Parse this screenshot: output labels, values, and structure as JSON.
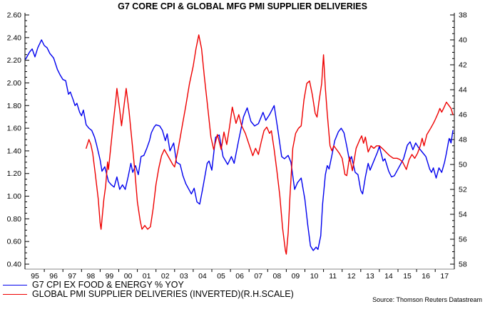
{
  "title": "G7 CORE CPI & GLOBAL MFG PMI SUPPLIER DELIVERIES",
  "source": "Source: Thomson Reuters Datastream",
  "colors": {
    "cpi_blue": "#0000ee",
    "pmi_red": "#ee0000",
    "axis": "#000000",
    "baseline": "#888888",
    "background": "#ffffff"
  },
  "legend": [
    {
      "label": "G7 CPI EX FOOD & ENERGY % YOY",
      "color": "#0000ee"
    },
    {
      "label": "GLOBAL PMI SUPPLIER DELIVERIES (INVERTED)(R.H.SCALE)",
      "color": "#ee0000"
    }
  ],
  "chart_data": {
    "type": "line",
    "title": "G7 CORE CPI & GLOBAL MFG PMI SUPPLIER DELIVERIES",
    "grid": false,
    "legend_position": "bottom-left",
    "x_axis": {
      "range": [
        1995,
        2018.2
      ],
      "tick_labels": [
        "95",
        "96",
        "97",
        "98",
        "99",
        "00",
        "01",
        "02",
        "03",
        "04",
        "05",
        "06",
        "07",
        "08",
        "09",
        "10",
        "11",
        "12",
        "13",
        "14",
        "15",
        "16",
        "17"
      ]
    },
    "left_axis": {
      "series": "G7 CPI EX FOOD & ENERGY % YOY",
      "range": [
        0.4,
        2.6
      ],
      "tick_step": 0.2,
      "minor_step": 0.05,
      "tick_labels": [
        "2.60",
        "2.40",
        "2.20",
        "2.00",
        "1.80",
        "1.60",
        "1.40",
        "1.20",
        "1.00",
        "0.80",
        "0.60",
        "0.40"
      ]
    },
    "right_axis": {
      "series": "GLOBAL PMI SUPPLIER DELIVERIES (INVERTED)",
      "range": [
        38,
        58
      ],
      "inverted_scale": true,
      "tick_step": 2,
      "minor_step": 0.5,
      "tick_labels": [
        "38",
        "40",
        "42",
        "44",
        "46",
        "48",
        "50",
        "52",
        "54",
        "56",
        "58"
      ]
    },
    "series": [
      {
        "name": "G7 CPI EX FOOD & ENERGY % YOY",
        "axis": "left",
        "color": "#0000ee",
        "points": [
          [
            1995.0,
            2.21
          ],
          [
            1995.2,
            2.27
          ],
          [
            1995.35,
            2.3
          ],
          [
            1995.5,
            2.23
          ],
          [
            1995.65,
            2.31
          ],
          [
            1995.85,
            2.38
          ],
          [
            1996.0,
            2.33
          ],
          [
            1996.15,
            2.31
          ],
          [
            1996.3,
            2.26
          ],
          [
            1996.5,
            2.22
          ],
          [
            1996.7,
            2.12
          ],
          [
            1996.85,
            2.07
          ],
          [
            1997.0,
            2.03
          ],
          [
            1997.15,
            2.02
          ],
          [
            1997.3,
            1.9
          ],
          [
            1997.4,
            1.92
          ],
          [
            1997.55,
            1.85
          ],
          [
            1997.65,
            1.8
          ],
          [
            1997.75,
            1.82
          ],
          [
            1997.9,
            1.74
          ],
          [
            1998.0,
            1.71
          ],
          [
            1998.1,
            1.76
          ],
          [
            1998.25,
            1.63
          ],
          [
            1998.4,
            1.6
          ],
          [
            1998.55,
            1.58
          ],
          [
            1998.7,
            1.52
          ],
          [
            1998.8,
            1.46
          ],
          [
            1999.0,
            1.32
          ],
          [
            1999.1,
            1.22
          ],
          [
            1999.25,
            1.26
          ],
          [
            1999.45,
            1.13
          ],
          [
            1999.6,
            1.1
          ],
          [
            1999.75,
            1.08
          ],
          [
            1999.9,
            1.17
          ],
          [
            2000.05,
            1.06
          ],
          [
            2000.2,
            1.1
          ],
          [
            2000.35,
            1.06
          ],
          [
            2000.5,
            1.17
          ],
          [
            2000.65,
            1.29
          ],
          [
            2000.75,
            1.21
          ],
          [
            2000.9,
            1.27
          ],
          [
            2001.05,
            1.19
          ],
          [
            2001.2,
            1.35
          ],
          [
            2001.35,
            1.36
          ],
          [
            2001.5,
            1.42
          ],
          [
            2001.65,
            1.49
          ],
          [
            2001.75,
            1.56
          ],
          [
            2001.9,
            1.61
          ],
          [
            2002.0,
            1.63
          ],
          [
            2002.2,
            1.62
          ],
          [
            2002.35,
            1.58
          ],
          [
            2002.5,
            1.49
          ],
          [
            2002.6,
            1.55
          ],
          [
            2002.75,
            1.4
          ],
          [
            2002.95,
            1.47
          ],
          [
            2003.1,
            1.3
          ],
          [
            2003.3,
            1.28
          ],
          [
            2003.45,
            1.18
          ],
          [
            2003.6,
            1.11
          ],
          [
            2003.8,
            1.05
          ],
          [
            2003.9,
            1.02
          ],
          [
            2004.05,
            1.07
          ],
          [
            2004.2,
            0.95
          ],
          [
            2004.35,
            0.93
          ],
          [
            2004.5,
            1.06
          ],
          [
            2004.75,
            1.29
          ],
          [
            2004.85,
            1.31
          ],
          [
            2005.0,
            1.23
          ],
          [
            2005.2,
            1.52
          ],
          [
            2005.4,
            1.54
          ],
          [
            2005.6,
            1.35
          ],
          [
            2005.85,
            1.28
          ],
          [
            2006.05,
            1.35
          ],
          [
            2006.2,
            1.29
          ],
          [
            2006.45,
            1.5
          ],
          [
            2006.7,
            1.7
          ],
          [
            2006.9,
            1.78
          ],
          [
            2007.1,
            1.66
          ],
          [
            2007.3,
            1.62
          ],
          [
            2007.5,
            1.64
          ],
          [
            2007.75,
            1.74
          ],
          [
            2007.9,
            1.67
          ],
          [
            2008.1,
            1.72
          ],
          [
            2008.35,
            1.8
          ],
          [
            2008.55,
            1.58
          ],
          [
            2008.75,
            1.35
          ],
          [
            2008.9,
            1.33
          ],
          [
            2009.1,
            1.36
          ],
          [
            2009.25,
            1.3
          ],
          [
            2009.45,
            1.06
          ],
          [
            2009.6,
            1.12
          ],
          [
            2009.8,
            1.16
          ],
          [
            2010.0,
            0.97
          ],
          [
            2010.15,
            0.75
          ],
          [
            2010.3,
            0.56
          ],
          [
            2010.45,
            0.52
          ],
          [
            2010.6,
            0.55
          ],
          [
            2010.7,
            0.53
          ],
          [
            2010.85,
            0.65
          ],
          [
            2010.95,
            0.93
          ],
          [
            2011.1,
            1.19
          ],
          [
            2011.2,
            1.27
          ],
          [
            2011.3,
            1.24
          ],
          [
            2011.45,
            1.36
          ],
          [
            2011.6,
            1.49
          ],
          [
            2011.8,
            1.57
          ],
          [
            2011.95,
            1.6
          ],
          [
            2012.1,
            1.56
          ],
          [
            2012.25,
            1.44
          ],
          [
            2012.4,
            1.31
          ],
          [
            2012.5,
            1.35
          ],
          [
            2012.7,
            1.21
          ],
          [
            2012.85,
            1.19
          ],
          [
            2013.0,
            1.05
          ],
          [
            2013.1,
            1.02
          ],
          [
            2013.25,
            1.17
          ],
          [
            2013.4,
            1.29
          ],
          [
            2013.5,
            1.23
          ],
          [
            2013.7,
            1.31
          ],
          [
            2013.9,
            1.39
          ],
          [
            2014.0,
            1.44
          ],
          [
            2014.2,
            1.31
          ],
          [
            2014.3,
            1.33
          ],
          [
            2014.5,
            1.22
          ],
          [
            2014.65,
            1.17
          ],
          [
            2014.8,
            1.18
          ],
          [
            2015.1,
            1.27
          ],
          [
            2015.3,
            1.33
          ],
          [
            2015.5,
            1.45
          ],
          [
            2015.65,
            1.48
          ],
          [
            2015.8,
            1.41
          ],
          [
            2015.95,
            1.47
          ],
          [
            2016.1,
            1.43
          ],
          [
            2016.3,
            1.39
          ],
          [
            2016.5,
            1.35
          ],
          [
            2016.7,
            1.24
          ],
          [
            2016.8,
            1.21
          ],
          [
            2016.9,
            1.25
          ],
          [
            2017.05,
            1.16
          ],
          [
            2017.2,
            1.25
          ],
          [
            2017.35,
            1.21
          ],
          [
            2017.5,
            1.3
          ],
          [
            2017.6,
            1.38
          ],
          [
            2017.7,
            1.47
          ],
          [
            2017.75,
            1.51
          ],
          [
            2017.85,
            1.47
          ],
          [
            2017.95,
            1.58
          ]
        ]
      },
      {
        "name": "GLOBAL PMI SUPPLIER DELIVERIES (INVERTED)(R.H.SCALE)",
        "axis": "right",
        "color": "#ee0000",
        "points": [
          [
            1998.25,
            48.7
          ],
          [
            1998.4,
            48.0
          ],
          [
            1998.5,
            48.4
          ],
          [
            1998.6,
            49.1
          ],
          [
            1998.75,
            50.9
          ],
          [
            1998.9,
            52.8
          ],
          [
            1999.0,
            54.7
          ],
          [
            1999.05,
            55.2
          ],
          [
            1999.2,
            52.8
          ],
          [
            1999.3,
            51.7
          ],
          [
            1999.4,
            49.8
          ],
          [
            1999.45,
            50.4
          ],
          [
            1999.55,
            48.9
          ],
          [
            1999.7,
            46.7
          ],
          [
            1999.85,
            44.7
          ],
          [
            1999.9,
            43.9
          ],
          [
            2000.05,
            45.6
          ],
          [
            2000.15,
            46.9
          ],
          [
            2000.4,
            43.9
          ],
          [
            2000.55,
            45.7
          ],
          [
            2000.7,
            48.0
          ],
          [
            2000.85,
            50.3
          ],
          [
            2001.0,
            53.0
          ],
          [
            2001.15,
            54.5
          ],
          [
            2001.25,
            55.2
          ],
          [
            2001.4,
            54.9
          ],
          [
            2001.55,
            55.2
          ],
          [
            2001.7,
            55.0
          ],
          [
            2001.85,
            53.5
          ],
          [
            2002.0,
            51.6
          ],
          [
            2002.15,
            50.3
          ],
          [
            2002.3,
            49.3
          ],
          [
            2002.45,
            48.8
          ],
          [
            2002.6,
            49.2
          ],
          [
            2002.75,
            49.6
          ],
          [
            2002.9,
            50.0
          ],
          [
            2003.0,
            50.2
          ],
          [
            2003.2,
            48.7
          ],
          [
            2003.4,
            47.0
          ],
          [
            2003.6,
            45.3
          ],
          [
            2003.8,
            43.5
          ],
          [
            2004.0,
            42.1
          ],
          [
            2004.15,
            40.7
          ],
          [
            2004.3,
            39.6
          ],
          [
            2004.45,
            40.7
          ],
          [
            2004.6,
            43.0
          ],
          [
            2004.8,
            45.7
          ],
          [
            2004.95,
            47.8
          ],
          [
            2005.1,
            48.8
          ],
          [
            2005.3,
            47.6
          ],
          [
            2005.5,
            48.8
          ],
          [
            2005.65,
            47.4
          ],
          [
            2005.8,
            48.4
          ],
          [
            2005.95,
            47.0
          ],
          [
            2006.1,
            45.4
          ],
          [
            2006.3,
            46.7
          ],
          [
            2006.45,
            46.0
          ],
          [
            2006.6,
            46.9
          ],
          [
            2006.8,
            47.5
          ],
          [
            2007.0,
            48.4
          ],
          [
            2007.2,
            49.3
          ],
          [
            2007.35,
            48.7
          ],
          [
            2007.5,
            49.2
          ],
          [
            2007.65,
            48.2
          ],
          [
            2007.8,
            47.3
          ],
          [
            2007.95,
            47.0
          ],
          [
            2008.1,
            47.5
          ],
          [
            2008.2,
            47.3
          ],
          [
            2008.35,
            48.8
          ],
          [
            2008.5,
            50.6
          ],
          [
            2008.65,
            52.5
          ],
          [
            2008.8,
            55.1
          ],
          [
            2008.95,
            56.9
          ],
          [
            2009.0,
            57.2
          ],
          [
            2009.1,
            55.5
          ],
          [
            2009.2,
            52.5
          ],
          [
            2009.35,
            48.7
          ],
          [
            2009.5,
            47.5
          ],
          [
            2009.65,
            47.1
          ],
          [
            2009.8,
            46.9
          ],
          [
            2009.95,
            44.8
          ],
          [
            2010.1,
            43.5
          ],
          [
            2010.25,
            43.3
          ],
          [
            2010.4,
            44.4
          ],
          [
            2010.55,
            45.9
          ],
          [
            2010.65,
            46.2
          ],
          [
            2010.75,
            45.0
          ],
          [
            2010.9,
            43.5
          ],
          [
            2011.0,
            41.2
          ],
          [
            2011.1,
            43.9
          ],
          [
            2011.2,
            45.9
          ],
          [
            2011.35,
            48.5
          ],
          [
            2011.45,
            48.9
          ],
          [
            2011.55,
            48.5
          ],
          [
            2011.7,
            48.8
          ],
          [
            2011.85,
            49.1
          ],
          [
            2012.0,
            49.5
          ],
          [
            2012.15,
            50.8
          ],
          [
            2012.25,
            50.9
          ],
          [
            2012.4,
            49.4
          ],
          [
            2012.55,
            50.5
          ],
          [
            2012.75,
            48.7
          ],
          [
            2012.95,
            48.0
          ],
          [
            2013.05,
            47.7
          ],
          [
            2013.15,
            48.3
          ],
          [
            2013.25,
            47.8
          ],
          [
            2013.4,
            49.0
          ],
          [
            2013.55,
            48.5
          ],
          [
            2013.7,
            48.7
          ],
          [
            2013.85,
            48.5
          ],
          [
            2014.0,
            48.5
          ],
          [
            2014.15,
            48.7
          ],
          [
            2014.35,
            49.0
          ],
          [
            2014.55,
            49.3
          ],
          [
            2014.75,
            49.5
          ],
          [
            2014.95,
            49.5
          ],
          [
            2015.1,
            49.6
          ],
          [
            2015.25,
            49.8
          ],
          [
            2015.45,
            50.4
          ],
          [
            2015.6,
            49.6
          ],
          [
            2015.75,
            49.2
          ],
          [
            2015.9,
            49.5
          ],
          [
            2016.05,
            49.1
          ],
          [
            2016.2,
            48.5
          ],
          [
            2016.3,
            47.9
          ],
          [
            2016.4,
            48.5
          ],
          [
            2016.55,
            47.6
          ],
          [
            2016.75,
            47.1
          ],
          [
            2016.9,
            46.7
          ],
          [
            2017.0,
            46.4
          ],
          [
            2017.15,
            45.9
          ],
          [
            2017.25,
            45.5
          ],
          [
            2017.35,
            45.8
          ],
          [
            2017.45,
            45.5
          ],
          [
            2017.6,
            45.0
          ],
          [
            2017.75,
            45.3
          ],
          [
            2017.85,
            45.5
          ],
          [
            2017.95,
            46.0
          ]
        ]
      }
    ]
  }
}
